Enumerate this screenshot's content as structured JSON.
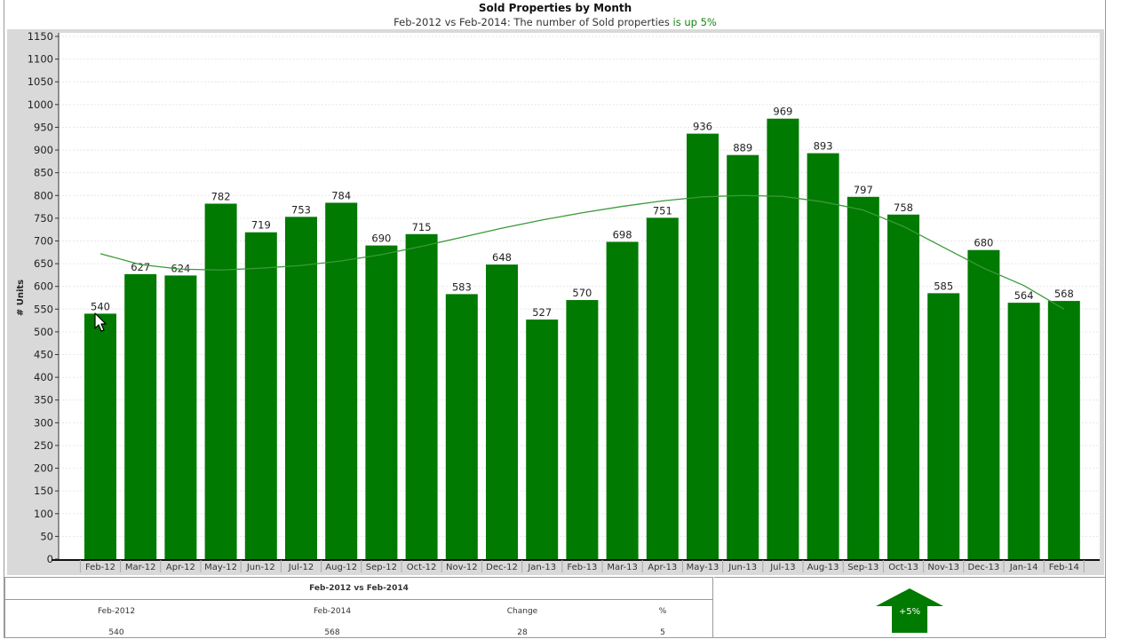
{
  "chart_data": {
    "type": "bar",
    "title": "Sold Properties by Month",
    "subtitle_prefix": "Feb-2012 vs Feb-2014: The number of Sold properties ",
    "subtitle_highlight": "is up 5%",
    "ylabel": "# Units",
    "xlabel": "",
    "ylim": [
      0,
      1150
    ],
    "ytick_step": 50,
    "grid": true,
    "categories": [
      "Feb-12",
      "Mar-12",
      "Apr-12",
      "May-12",
      "Jun-12",
      "Jul-12",
      "Aug-12",
      "Sep-12",
      "Oct-12",
      "Nov-12",
      "Dec-12",
      "Jan-13",
      "Feb-13",
      "Mar-13",
      "Apr-13",
      "May-13",
      "Jun-13",
      "Jul-13",
      "Aug-13",
      "Sep-13",
      "Oct-13",
      "Nov-13",
      "Dec-13",
      "Jan-14",
      "Feb-14"
    ],
    "values": [
      540,
      627,
      624,
      782,
      719,
      753,
      784,
      690,
      715,
      583,
      648,
      527,
      570,
      698,
      751,
      936,
      889,
      969,
      893,
      797,
      758,
      585,
      680,
      564,
      568
    ],
    "trend": [
      672,
      648,
      638,
      636,
      640,
      646,
      656,
      670,
      688,
      708,
      728,
      746,
      762,
      776,
      788,
      797,
      800,
      798,
      786,
      768,
      732,
      686,
      640,
      602,
      550
    ],
    "bar_color": "#007a00",
    "trend_color": "#3a9a3a"
  },
  "comparison": {
    "heading": "Feb-2012 vs Feb-2014",
    "columns": [
      "Feb-2012",
      "Feb-2014",
      "Change",
      "%"
    ],
    "values": [
      "540",
      "568",
      "28",
      "5"
    ]
  },
  "indicator": {
    "label": "+5%",
    "direction": "up",
    "color": "#007a00"
  }
}
